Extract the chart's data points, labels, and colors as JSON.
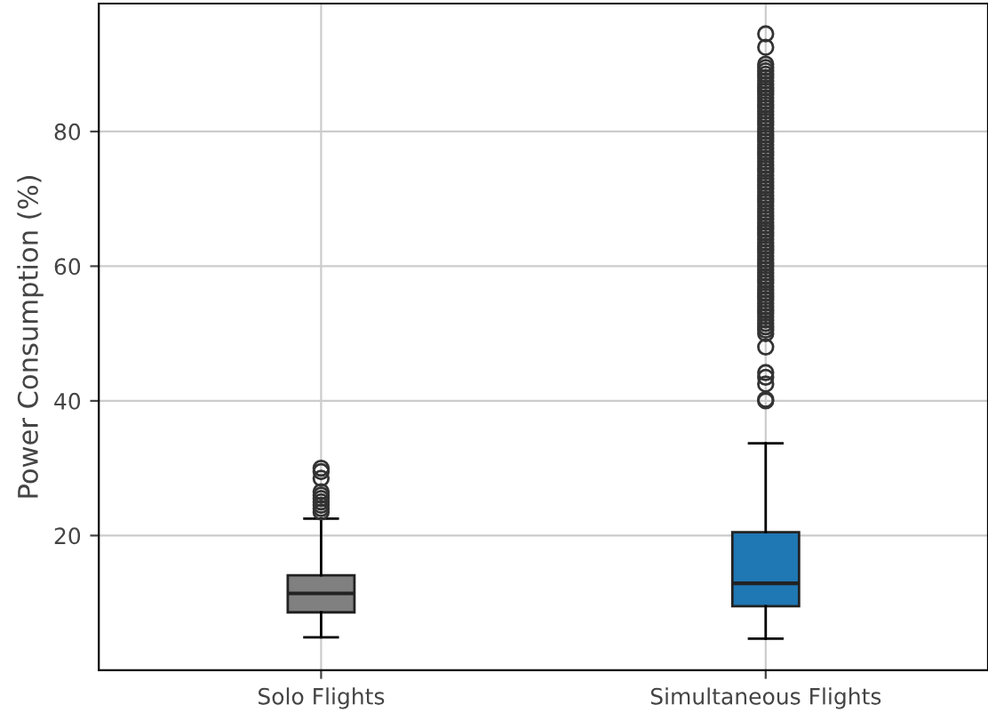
{
  "chart_data": {
    "type": "box",
    "ylabel": "Power Consumption (%)",
    "categories": [
      "Solo Flights",
      "Simultaneous Flights"
    ],
    "colors": [
      "#808080",
      "#1f77b4"
    ],
    "boxes": [
      {
        "low": 4.9,
        "q1": 8.6,
        "median": 11.4,
        "q3": 14.1,
        "high": 22.5,
        "outliers": [
          23.5,
          24,
          24.5,
          25,
          25.5,
          26,
          26.5,
          28.5,
          29.5,
          30
        ]
      },
      {
        "low": 4.7,
        "q1": 9.5,
        "median": 12.9,
        "q3": 20.5,
        "high": 33.7,
        "outliers": [
          40,
          40.2,
          42.5,
          43.5,
          44.2,
          48,
          50,
          50.5,
          51,
          51.5,
          52,
          52.5,
          53,
          53.5,
          54,
          54.5,
          55,
          55.5,
          56,
          56.5,
          57,
          57.5,
          58,
          58.5,
          59,
          59.5,
          60,
          60.5,
          61,
          61.5,
          62,
          62.5,
          63,
          63.5,
          64,
          64.5,
          65,
          65.5,
          66,
          66.5,
          67,
          67.5,
          68,
          68.5,
          69,
          69.5,
          70,
          70.5,
          71,
          71.5,
          72,
          72.5,
          73,
          73.5,
          74,
          74.5,
          75,
          75.5,
          76,
          76.5,
          77,
          77.5,
          78,
          78.5,
          79,
          79.5,
          80,
          80.5,
          81,
          81.5,
          82,
          82.5,
          83,
          83.5,
          84,
          84.5,
          85,
          85.5,
          86,
          86.5,
          87,
          87.5,
          88,
          88.5,
          89,
          89.5,
          90,
          92.5,
          94.5
        ]
      }
    ],
    "ylim": [
      0,
      99
    ],
    "yticks": [
      20,
      40,
      60,
      80
    ],
    "grid": true
  }
}
